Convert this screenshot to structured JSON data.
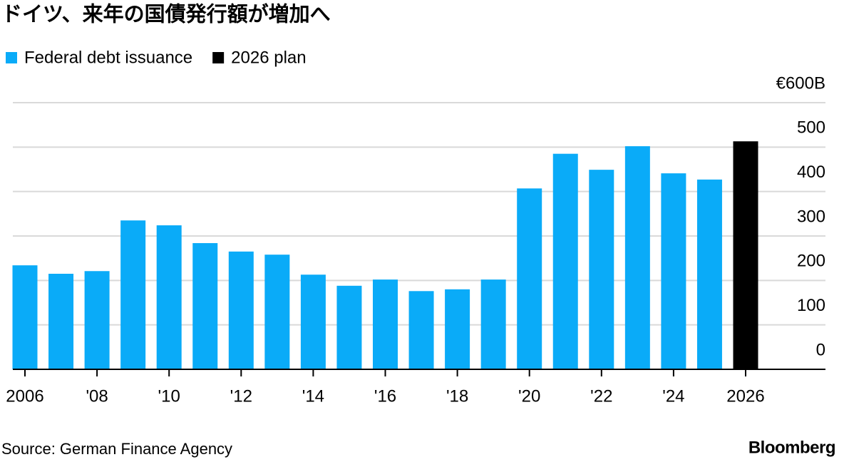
{
  "chart_data": {
    "type": "bar",
    "title": "ドイツ、来年の国債発行額が増加へ",
    "categories": [
      "2006",
      null,
      "'08",
      null,
      "'10",
      null,
      "'12",
      null,
      "'14",
      null,
      "'16",
      null,
      "'18",
      null,
      "'20",
      null,
      "'22",
      null,
      "'24",
      null,
      "2026"
    ],
    "series": [
      {
        "name": "Federal debt issuance",
        "color": "#0aabf8",
        "values": [
          234,
          215,
          221,
          335,
          324,
          284,
          265,
          258,
          213,
          188,
          202,
          176,
          180,
          202,
          407,
          485,
          449,
          502,
          441,
          427,
          null
        ]
      },
      {
        "name": "2026 plan",
        "color": "#000000",
        "values": [
          null,
          null,
          null,
          null,
          null,
          null,
          null,
          null,
          null,
          null,
          null,
          null,
          null,
          null,
          null,
          null,
          null,
          null,
          null,
          null,
          513
        ]
      }
    ],
    "ylim": [
      0,
      600
    ],
    "yticks": [
      0,
      100,
      200,
      300,
      400,
      500,
      {
        "value": 600,
        "label": "€600B"
      }
    ],
    "grid": true,
    "source": "Source: German Finance Agency",
    "credit": "Bloomberg"
  }
}
